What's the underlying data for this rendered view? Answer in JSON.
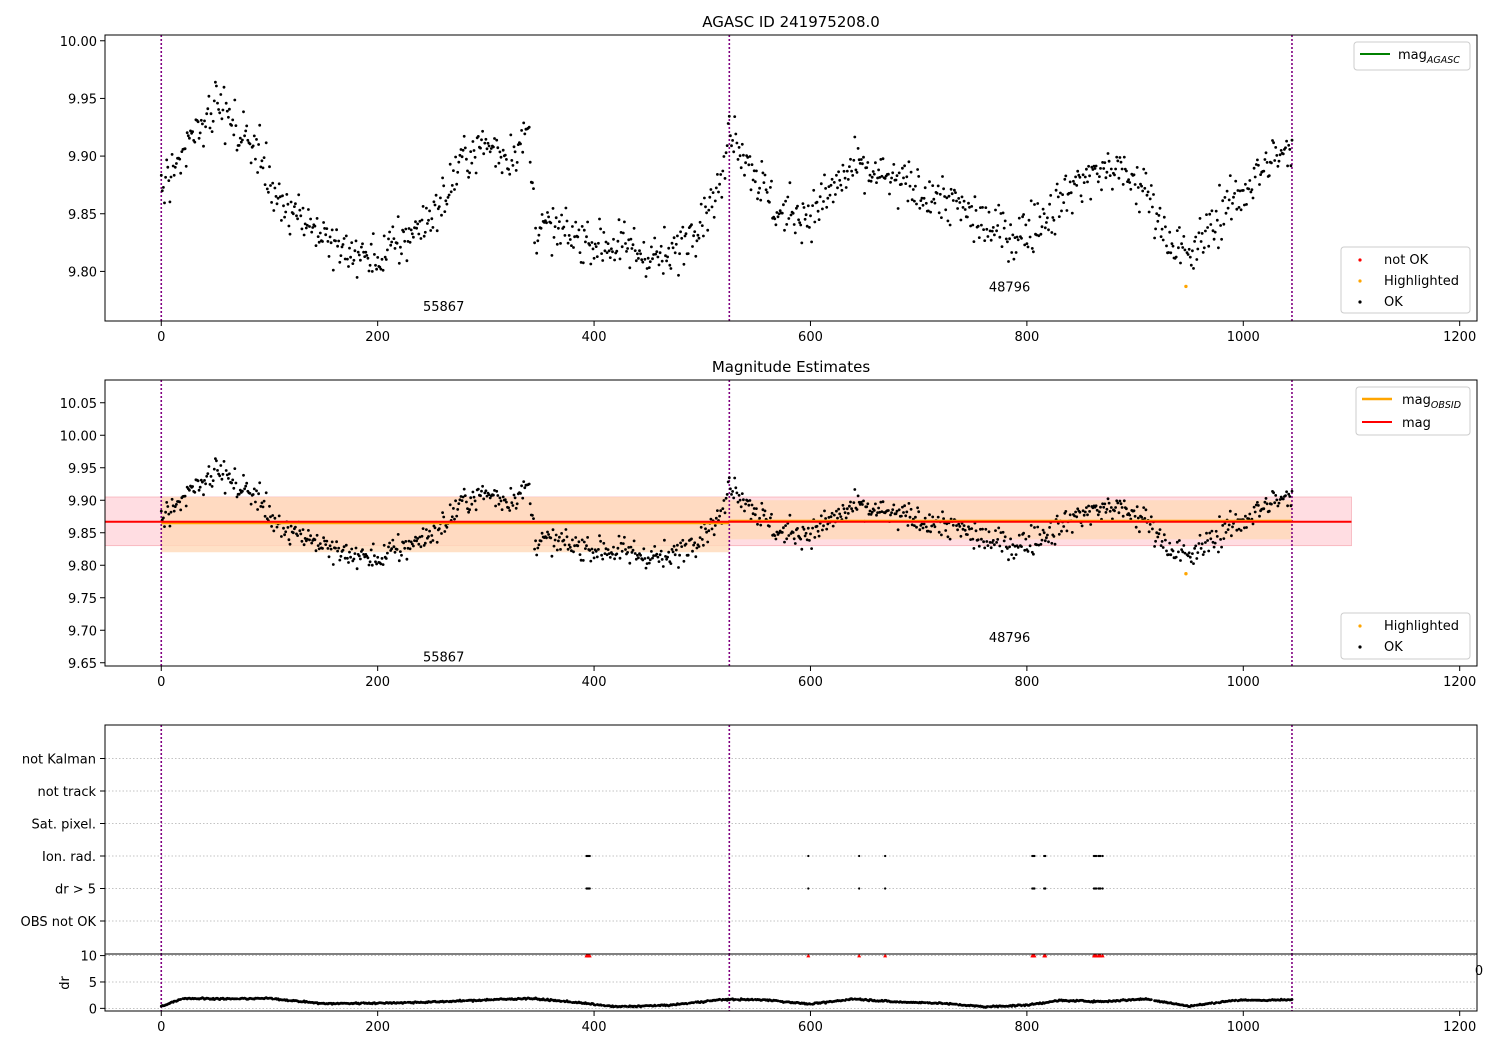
{
  "figure_title": "AGASC ID 241975208.0",
  "colors": {
    "ok": "#000000",
    "highlighted": "#ffa500",
    "not_ok": "#ff0000",
    "mag_agasc": "#008000",
    "mag_obsid": "#ffa500",
    "mag": "#ff0000",
    "obsid_boundary": "#800080",
    "band_obsid": "#ffdab9",
    "band_mag": "#ffdde2"
  },
  "chart_data": [
    {
      "type": "scatter",
      "title": "AGASC ID 241975208.0",
      "xlim": [
        -52,
        1216
      ],
      "ylim": [
        9.757,
        10.005
      ],
      "xticks": [
        0,
        200,
        400,
        600,
        800,
        1000,
        1200
      ],
      "xtick_labels": [
        "0",
        "200",
        "400",
        "600",
        "800",
        "1000",
        "1200"
      ],
      "yticks": [
        9.8,
        9.85,
        9.9,
        9.95,
        10.0
      ],
      "ytick_labels": [
        "9.80",
        "9.85",
        "9.90",
        "9.95",
        "10.00"
      ],
      "obsid_boundaries": [
        0,
        525,
        1045
      ],
      "obsid_labels": [
        {
          "text": "55867",
          "x": 261,
          "y": 9.77
        },
        {
          "text": "48796",
          "x": 784,
          "y": 9.787
        }
      ],
      "line_legend": [
        "mag_AGASC"
      ],
      "scatter_legend": [
        "not OK",
        "Highlighted",
        "OK"
      ],
      "highlighted_point": {
        "x": 947,
        "y": 9.787
      },
      "ok_series_knots": {
        "x": [
          0,
          15,
          30,
          50,
          70,
          90,
          100,
          130,
          160,
          200,
          240,
          260,
          280,
          300,
          320,
          340,
          345,
          380,
          430,
          470,
          500,
          520,
          525,
          540,
          570,
          600,
          640,
          670,
          700,
          730,
          760,
          790,
          820,
          850,
          880,
          910,
          930,
          950,
          970,
          1000,
          1030,
          1045
        ],
        "y": [
          9.87,
          9.9,
          9.92,
          9.95,
          9.92,
          9.91,
          9.87,
          9.85,
          9.82,
          9.81,
          9.84,
          9.86,
          9.9,
          9.91,
          9.9,
          9.92,
          9.84,
          9.83,
          9.82,
          9.81,
          9.85,
          9.88,
          9.93,
          9.9,
          9.85,
          9.85,
          9.89,
          9.88,
          9.87,
          9.86,
          9.84,
          9.83,
          9.85,
          9.88,
          9.89,
          9.87,
          9.83,
          9.81,
          9.84,
          9.87,
          9.9,
          9.9
        ]
      }
    },
    {
      "type": "scatter",
      "title": "Magnitude Estimates",
      "xlim": [
        -52,
        1216
      ],
      "ylim": [
        9.645,
        10.085
      ],
      "xticks": [
        0,
        200,
        400,
        600,
        800,
        1000,
        1200
      ],
      "xtick_labels": [
        "0",
        "200",
        "400",
        "600",
        "800",
        "1000",
        "1200"
      ],
      "yticks": [
        9.65,
        9.7,
        9.75,
        9.8,
        9.85,
        9.9,
        9.95,
        10.0,
        10.05
      ],
      "ytick_labels": [
        "9.65",
        "9.70",
        "9.75",
        "9.80",
        "9.85",
        "9.90",
        "9.95",
        "10.00",
        "10.05"
      ],
      "obsid_boundaries": [
        0,
        525,
        1045
      ],
      "obsid_labels": [
        {
          "text": "55867",
          "x": 261,
          "y": 9.66
        },
        {
          "text": "48796",
          "x": 784,
          "y": 9.69
        }
      ],
      "line_legend": [
        "mag_OBSID",
        "mag"
      ],
      "scatter_legend": [
        "Highlighted",
        "OK"
      ],
      "mag_value": 9.867,
      "mag_band": {
        "x": [
          -52,
          1100
        ],
        "low": 9.83,
        "high": 9.905
      },
      "obsid_bands": [
        {
          "x": [
            0,
            525
          ],
          "mag": 9.865,
          "low": 9.82,
          "high": 9.905
        },
        {
          "x": [
            525,
            1045
          ],
          "mag": 9.868,
          "low": 9.84,
          "high": 9.9
        }
      ],
      "highlighted_point": {
        "x": 947,
        "y": 9.787
      }
    },
    {
      "type": "scatter",
      "title": "",
      "xlim": [
        -52,
        1216
      ],
      "categories": [
        "OBS not OK",
        "dr > 5",
        "Ion. rad.",
        "Sat. pixel.",
        "not track",
        "not Kalman"
      ],
      "flag_x": {
        "dr > 5": [
          393,
          394,
          395,
          396,
          598,
          645,
          669,
          805,
          806,
          807,
          816,
          817,
          862,
          863,
          864,
          866,
          867,
          868,
          870
        ],
        "Ion. rad.": [
          393,
          394,
          395,
          396,
          598,
          645,
          669,
          805,
          806,
          807,
          816,
          817,
          862,
          863,
          864,
          866,
          867,
          868,
          870
        ]
      },
      "obsid_boundaries": [
        0,
        525,
        1045
      ]
    },
    {
      "type": "scatter",
      "title": "",
      "xlim": [
        -52,
        1216
      ],
      "ylim": [
        -0.5,
        10.3
      ],
      "ylabel": "dr",
      "yticks": [
        0,
        5,
        10
      ],
      "ytick_labels": [
        "0",
        "5",
        "10"
      ],
      "xticks": [
        0,
        200,
        400,
        600,
        800,
        1000,
        1200
      ],
      "xtick_labels": [
        "0",
        "200",
        "400",
        "600",
        "800",
        "1000",
        "1200"
      ],
      "overlap_tick_text": "0",
      "obsid_boundaries": [
        0,
        525,
        1045
      ],
      "capped_x": [
        393,
        394,
        395,
        396,
        598,
        645,
        669,
        805,
        806,
        807,
        816,
        817,
        862,
        863,
        864,
        866,
        867,
        868,
        870
      ],
      "capped_value": 10,
      "dr_knots": {
        "x": [
          0,
          20,
          60,
          100,
          150,
          200,
          250,
          300,
          340,
          380,
          420,
          470,
          520,
          560,
          600,
          640,
          680,
          720,
          760,
          800,
          830,
          870,
          910,
          950,
          990,
          1045
        ],
        "y": [
          0.4,
          1.9,
          1.8,
          1.9,
          0.9,
          1.0,
          1.2,
          1.6,
          1.9,
          1.2,
          0.3,
          0.6,
          1.7,
          1.6,
          0.8,
          1.8,
          1.2,
          1.0,
          0.3,
          0.6,
          1.5,
          1.3,
          1.8,
          0.4,
          1.5,
          1.6
        ]
      }
    }
  ]
}
